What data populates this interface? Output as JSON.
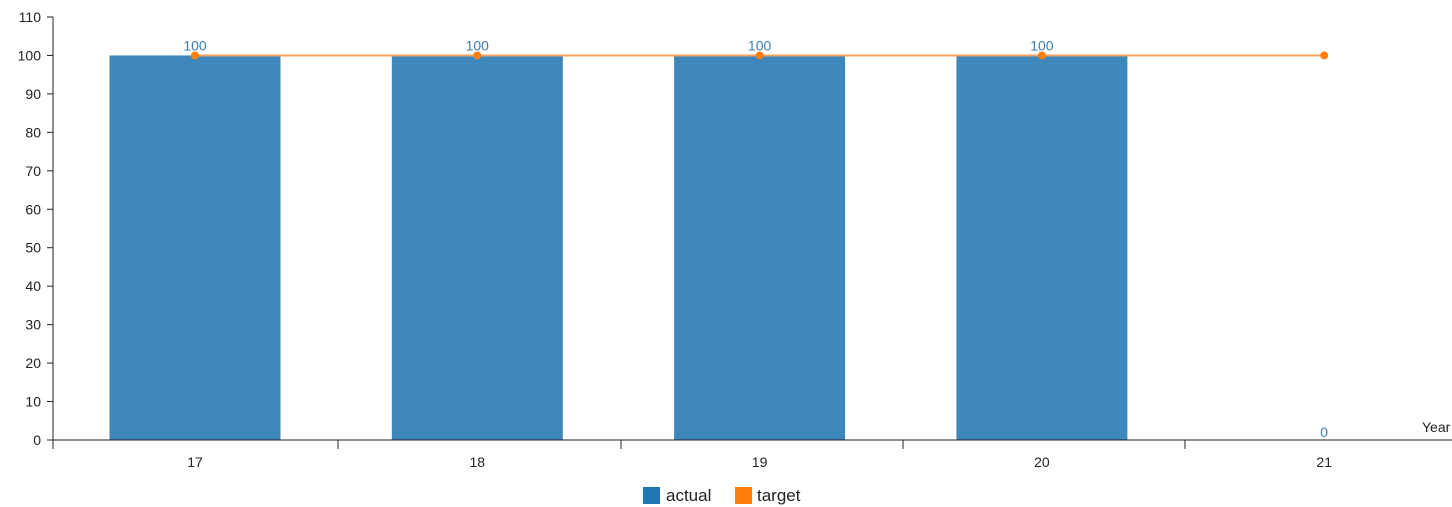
{
  "chart_data": {
    "type": "bar",
    "categories": [
      "17",
      "18",
      "19",
      "20",
      "21"
    ],
    "series": [
      {
        "name": "actual",
        "kind": "bar",
        "values": [
          100,
          100,
          100,
          100,
          0
        ],
        "color": "#3d87bb",
        "legend_color": "#1f77b4",
        "label_color": "#3a7fb0"
      },
      {
        "name": "target",
        "kind": "line",
        "values": [
          100,
          100,
          100,
          100,
          100
        ],
        "color": "#ff7f0e",
        "line_color": "#f2a35e"
      }
    ],
    "xlabel": "Year",
    "ylabel": "",
    "ylim": [
      0,
      110
    ],
    "yticks": [
      0,
      10,
      20,
      30,
      40,
      50,
      60,
      70,
      80,
      90,
      100,
      110
    ],
    "data_labels": [
      "100",
      "100",
      "100",
      "100",
      "0"
    ],
    "grid": false,
    "legend": {
      "placement": "bottom-center",
      "entries": [
        "actual",
        "target"
      ]
    }
  }
}
